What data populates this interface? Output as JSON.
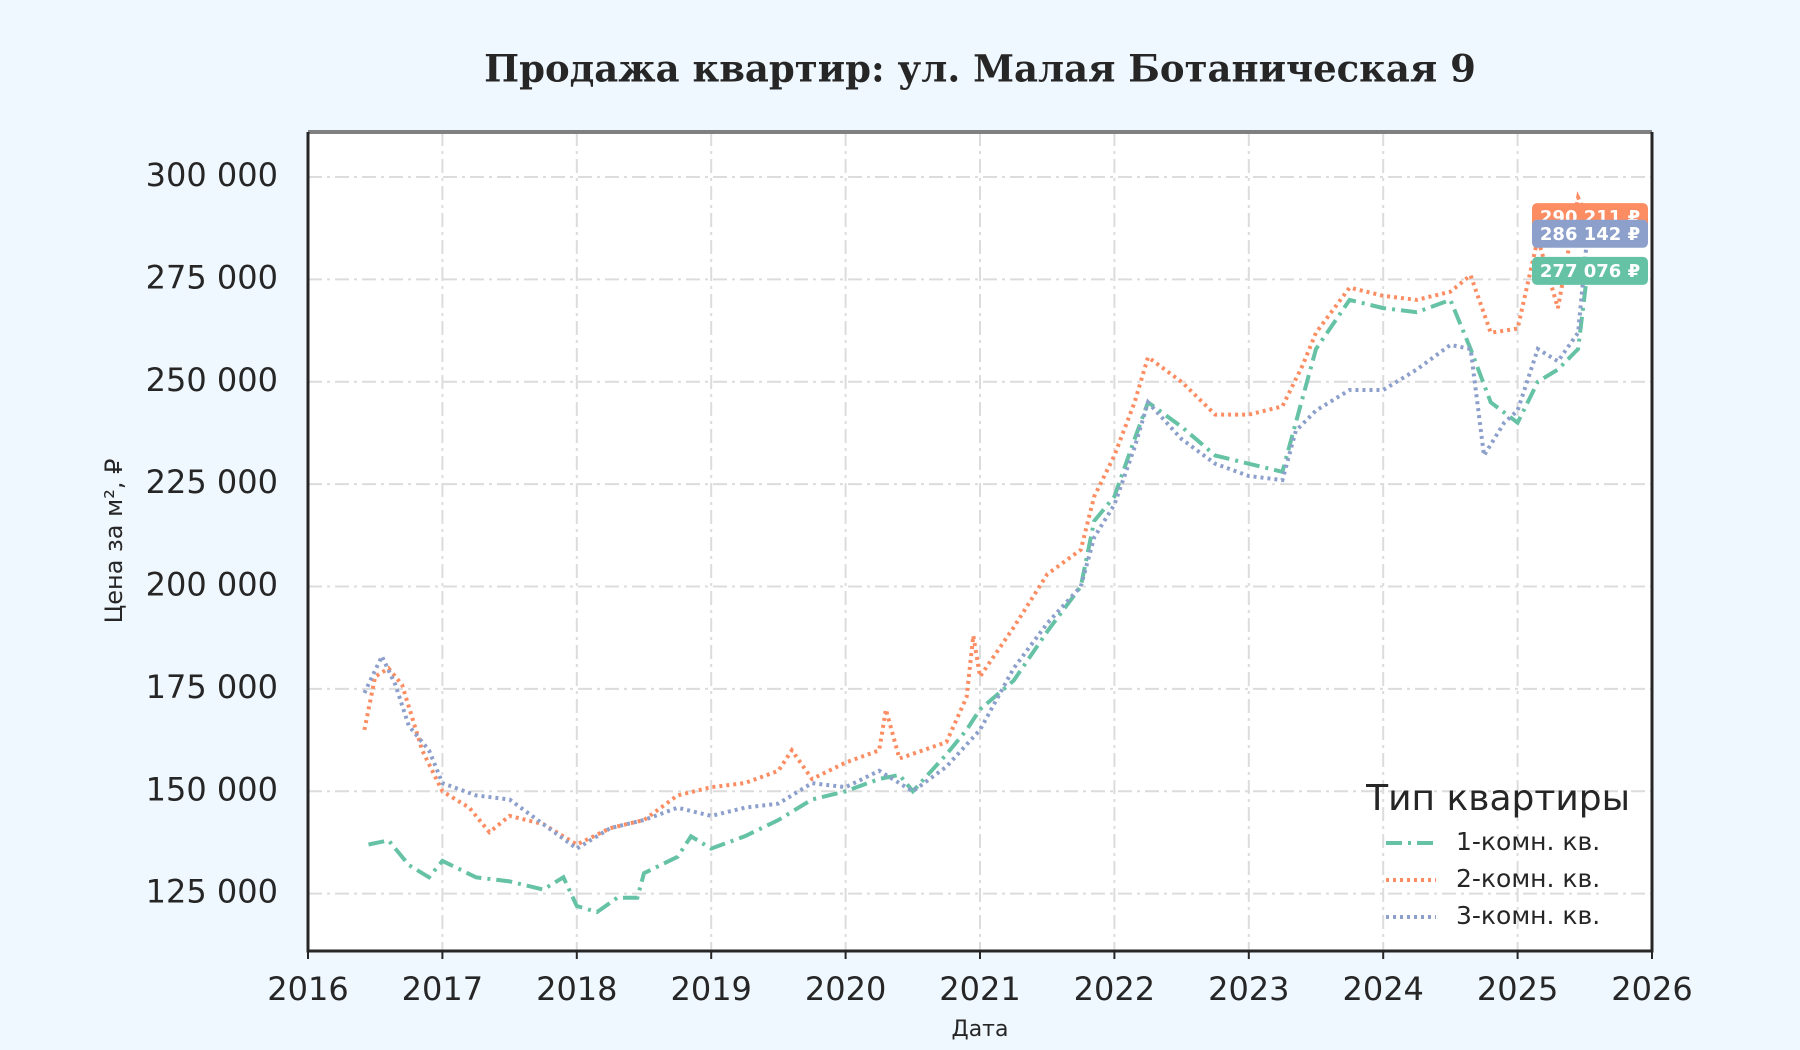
{
  "chart_data": {
    "type": "line",
    "title": "Продажа квартир: ул. Малая Ботаническая 9",
    "x_label": "Дата",
    "y_label": "Цена за м², ₽",
    "legend_title": "Тип квартиры",
    "legend": "lower right",
    "grid": true,
    "xlim": [
      2016,
      2026
    ],
    "xticks": [
      2016,
      2017,
      2018,
      2019,
      2020,
      2021,
      2022,
      2023,
      2024,
      2025,
      2026
    ],
    "ylim": [
      111000,
      311000
    ],
    "yticks": [
      {
        "value": 125000,
        "label": "125 000"
      },
      {
        "value": 150000,
        "label": "150 000"
      },
      {
        "value": 175000,
        "label": "175 000"
      },
      {
        "value": 200000,
        "label": "200 000"
      },
      {
        "value": 225000,
        "label": "225 000"
      },
      {
        "value": 250000,
        "label": "250 000"
      },
      {
        "value": 275000,
        "label": "275 000"
      },
      {
        "value": 300000,
        "label": "300 000"
      }
    ],
    "series": [
      {
        "name": "1-комн. кв.",
        "color": "#66c2a5",
        "dash": "dashdot",
        "end_label": "277 076 ₽",
        "x": [
          2016.45,
          2016.6,
          2016.75,
          2016.9,
          2017.0,
          2017.25,
          2017.5,
          2017.75,
          2017.9,
          2018.0,
          2018.15,
          2018.3,
          2018.45,
          2018.5,
          2018.75,
          2018.85,
          2019.0,
          2019.25,
          2019.5,
          2019.75,
          2020.0,
          2020.25,
          2020.4,
          2020.5,
          2020.75,
          2020.9,
          2021.0,
          2021.25,
          2021.5,
          2021.75,
          2021.85,
          2022.0,
          2022.15,
          2022.25,
          2022.5,
          2022.75,
          2023.0,
          2023.25,
          2023.35,
          2023.5,
          2023.75,
          2024.0,
          2024.25,
          2024.5,
          2024.65,
          2024.8,
          2025.0,
          2025.15,
          2025.3,
          2025.45,
          2025.52
        ],
        "values": [
          137000,
          138000,
          132000,
          129000,
          133000,
          129000,
          128000,
          126000,
          129000,
          122000,
          120500,
          124000,
          124000,
          130000,
          134000,
          139000,
          136000,
          139000,
          143000,
          148000,
          150000,
          153000,
          154000,
          150000,
          159000,
          165000,
          170000,
          177000,
          189000,
          200000,
          216000,
          222000,
          236000,
          245000,
          239000,
          232000,
          230000,
          228000,
          240000,
          258000,
          270000,
          268000,
          267000,
          270000,
          258000,
          245000,
          240000,
          250000,
          253000,
          258000,
          277076
        ]
      },
      {
        "name": "2-комн. кв.",
        "color": "#fc8d62",
        "dash": "dotted",
        "end_label": "290 211 ₽",
        "x": [
          2016.42,
          2016.5,
          2016.6,
          2016.7,
          2016.85,
          2017.0,
          2017.2,
          2017.35,
          2017.5,
          2017.75,
          2018.0,
          2018.25,
          2018.5,
          2018.75,
          2019.0,
          2019.25,
          2019.5,
          2019.6,
          2019.75,
          2020.0,
          2020.25,
          2020.3,
          2020.4,
          2020.75,
          2020.9,
          2020.95,
          2021.0,
          2021.25,
          2021.5,
          2021.75,
          2021.85,
          2022.0,
          2022.15,
          2022.25,
          2022.5,
          2022.75,
          2023.0,
          2023.25,
          2023.4,
          2023.5,
          2023.75,
          2024.0,
          2024.25,
          2024.5,
          2024.65,
          2024.8,
          2025.0,
          2025.15,
          2025.3,
          2025.45,
          2025.52
        ],
        "values": [
          165000,
          178000,
          180000,
          176000,
          160000,
          150000,
          146000,
          140000,
          144000,
          142000,
          137000,
          141000,
          143000,
          149000,
          151000,
          152000,
          155000,
          160000,
          153000,
          157000,
          160000,
          170000,
          158000,
          162000,
          173000,
          188000,
          178000,
          190000,
          203000,
          209000,
          222000,
          232000,
          245000,
          256000,
          250000,
          242000,
          242000,
          244000,
          254000,
          262000,
          273000,
          271000,
          270000,
          272000,
          276000,
          262000,
          263000,
          285000,
          268000,
          295000,
          290211
        ]
      },
      {
        "name": "3-комн. кв.",
        "color": "#8da0cb",
        "dash": "dotted",
        "end_label": "286 142 ₽",
        "x": [
          2016.42,
          2016.55,
          2016.65,
          2016.75,
          2016.9,
          2017.0,
          2017.25,
          2017.5,
          2017.75,
          2018.0,
          2018.25,
          2018.5,
          2018.75,
          2019.0,
          2019.25,
          2019.5,
          2019.75,
          2020.0,
          2020.25,
          2020.5,
          2020.75,
          2021.0,
          2021.25,
          2021.5,
          2021.75,
          2021.85,
          2022.0,
          2022.15,
          2022.25,
          2022.5,
          2022.75,
          2023.0,
          2023.25,
          2023.35,
          2023.5,
          2023.75,
          2024.0,
          2024.25,
          2024.5,
          2024.65,
          2024.75,
          2024.9,
          2025.0,
          2025.15,
          2025.3,
          2025.45,
          2025.52
        ],
        "values": [
          174000,
          183000,
          176000,
          166000,
          160000,
          152000,
          149000,
          148000,
          142000,
          136000,
          141000,
          143000,
          146000,
          144000,
          146000,
          147000,
          152000,
          151000,
          155000,
          150000,
          156000,
          165000,
          180000,
          191000,
          200000,
          212000,
          220000,
          234000,
          245000,
          236000,
          230000,
          227000,
          226000,
          238000,
          243000,
          248000,
          248000,
          253000,
          259000,
          258000,
          232000,
          240000,
          243000,
          258000,
          255000,
          262000,
          286142
        ]
      }
    ]
  }
}
